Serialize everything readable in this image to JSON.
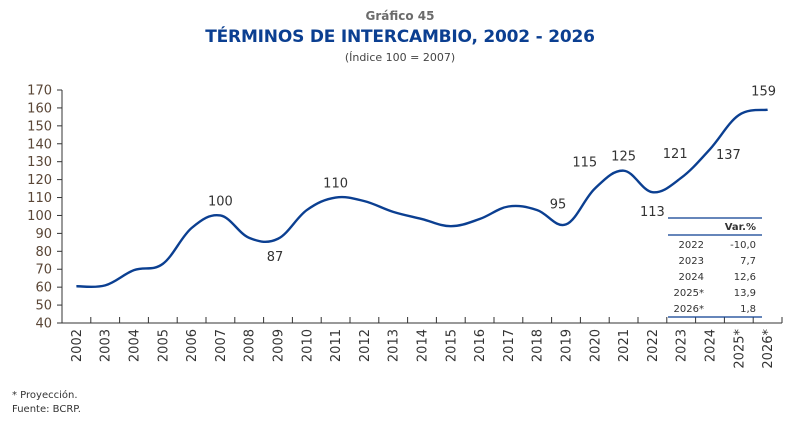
{
  "header": {
    "figure_number": "Gráfico 45",
    "title": "TÉRMINOS DE INTERCAMBIO, 2002 - 2026",
    "units": "(Índice 100 = 2007)"
  },
  "chart_data": {
    "type": "line",
    "title": "TÉRMINOS DE INTERCAMBIO, 2002 - 2026",
    "subtitle": "(Índice 100 = 2007)",
    "xlabel": "",
    "ylabel": "",
    "ylim": [
      40,
      170
    ],
    "yticks": [
      40,
      50,
      60,
      70,
      80,
      90,
      100,
      110,
      120,
      130,
      140,
      150,
      160,
      170
    ],
    "grid": false,
    "categories": [
      "2002",
      "2003",
      "2004",
      "2005",
      "2006",
      "2007",
      "2008",
      "2009",
      "2010",
      "2011",
      "2012",
      "2013",
      "2014",
      "2015",
      "2016",
      "2017",
      "2018",
      "2019",
      "2020",
      "2021",
      "2022",
      "2023",
      "2024",
      "2025*",
      "2026*"
    ],
    "series": [
      {
        "name": "Términos de intercambio",
        "color": "#0b3f91",
        "values": [
          60.5,
          61,
          69.5,
          73,
          93,
          100,
          87.5,
          87,
          103,
          110,
          108,
          102,
          98,
          94,
          98,
          105,
          103,
          95,
          115,
          125,
          113,
          121,
          137,
          156,
          159
        ]
      }
    ],
    "annotations": [
      {
        "category": "2007",
        "label": "100",
        "position": "above"
      },
      {
        "category": "2009",
        "label": "87",
        "position": "below"
      },
      {
        "category": "2011",
        "label": "110",
        "position": "above"
      },
      {
        "category": "2019",
        "label": "95",
        "position": "above"
      },
      {
        "category": "2020",
        "label": "115",
        "position": "above"
      },
      {
        "category": "2021",
        "label": "125",
        "position": "above"
      },
      {
        "category": "2022",
        "label": "113",
        "position": "below"
      },
      {
        "category": "2023",
        "label": "121",
        "position": "above"
      },
      {
        "category": "2024",
        "label": "137",
        "position": "right"
      },
      {
        "category": "2026*",
        "label": "159",
        "position": "above"
      }
    ],
    "inset_table": {
      "header": [
        "",
        "Var.%"
      ],
      "rows": [
        [
          "2022",
          "-10,0"
        ],
        [
          "2023",
          "7,7"
        ],
        [
          "2024",
          "12,6"
        ],
        [
          "2025*",
          "13,9"
        ],
        [
          "2026*",
          "1,8"
        ]
      ]
    }
  },
  "notes": {
    "projection": "* Proyección.",
    "source": "Fuente: BCRP."
  },
  "colors": {
    "line": "#0b3f91",
    "title": "#0b3f91",
    "axis_text": "#5a4636",
    "table_rule": "#0b3f91"
  }
}
